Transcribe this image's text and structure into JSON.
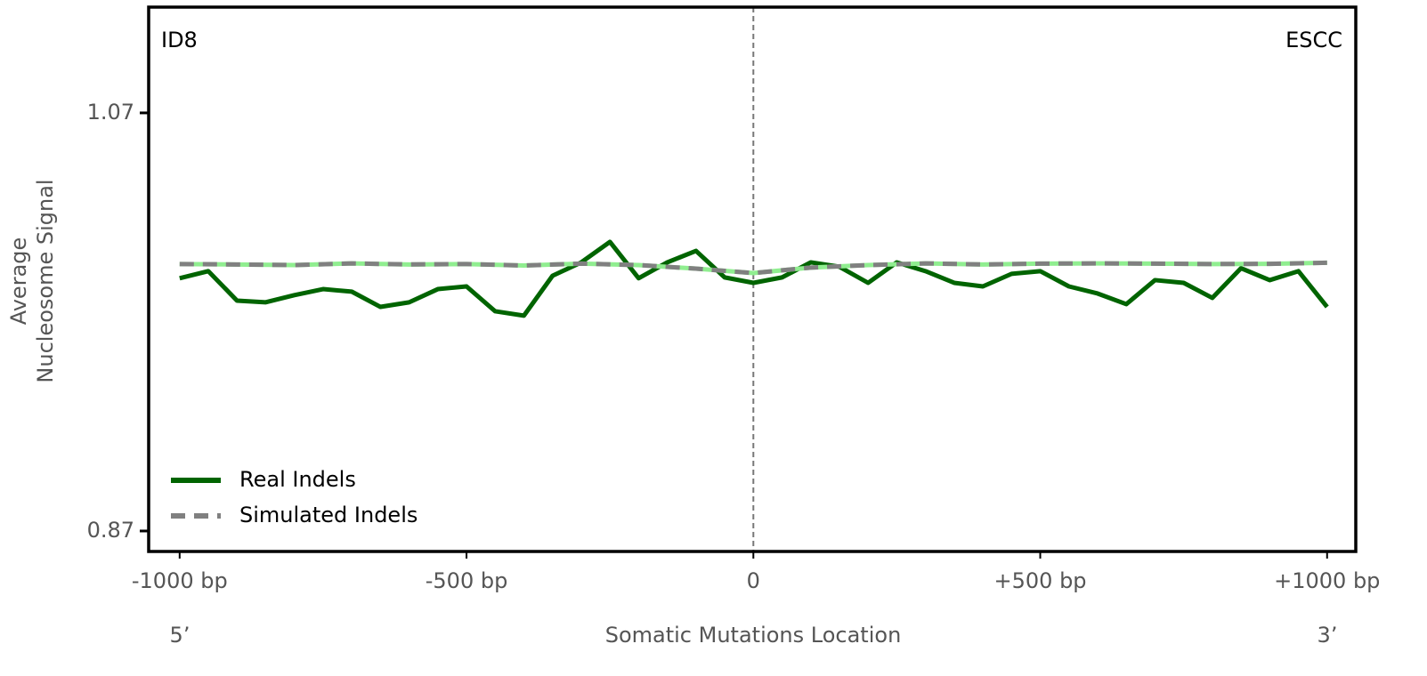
{
  "chart_data": {
    "type": "line",
    "title": "ID8",
    "subtitle": "ESCC",
    "ylabel": [
      "Average",
      "Nucleosome Signal"
    ],
    "xlabel": "Somatic Mutations Location",
    "annotations": [
      "5’",
      "3’"
    ],
    "xlim": [
      -1054,
      1050
    ],
    "ylim": [
      0.8602,
      1.1206
    ],
    "xticks": [
      {
        "value": -1000,
        "label": "-1000 bp"
      },
      {
        "value": -500,
        "label": "-500 bp"
      },
      0,
      {
        "value": 500,
        "label": "+500 bp"
      },
      {
        "value": 1000,
        "label": "+1000 bp"
      }
    ],
    "yticks": [
      0.87,
      1.07
    ],
    "vline": 0,
    "legend": "lower left",
    "series": [
      {
        "name": "Real Indels",
        "color": "#006400",
        "style": "solid",
        "x": [
          -1000,
          -950,
          -900,
          -850,
          -800,
          -750,
          -700,
          -650,
          -600,
          -550,
          -500,
          -450,
          -400,
          -350,
          -300,
          -250,
          -200,
          -150,
          -100,
          -50,
          0,
          50,
          100,
          150,
          200,
          250,
          300,
          350,
          400,
          450,
          500,
          550,
          600,
          650,
          700,
          750,
          800,
          850,
          900,
          950,
          1000
        ],
        "values": [
          0.9909,
          0.9943,
          0.9802,
          0.9794,
          0.9828,
          0.9857,
          0.9845,
          0.9772,
          0.9794,
          0.9857,
          0.987,
          0.9751,
          0.973,
          0.9921,
          0.9985,
          1.0083,
          0.9909,
          0.9985,
          1.004,
          0.9913,
          0.9887,
          0.9913,
          0.9985,
          0.9964,
          0.9887,
          0.9985,
          0.9943,
          0.9887,
          0.987,
          0.993,
          0.9943,
          0.987,
          0.9836,
          0.9785,
          0.99,
          0.9887,
          0.9815,
          0.9957,
          0.99,
          0.9943,
          0.9772
        ]
      },
      {
        "name": "Simulated Indels",
        "color": "#808080",
        "style": "dashed",
        "dash_gap_color": "#90ee90",
        "x": [
          -1000,
          -900,
          -800,
          -700,
          -600,
          -500,
          -400,
          -300,
          -200,
          -100,
          0,
          100,
          200,
          300,
          400,
          500,
          600,
          700,
          800,
          900,
          1000
        ],
        "values": [
          0.9977,
          0.9975,
          0.9972,
          0.998,
          0.9975,
          0.9977,
          0.997,
          0.9979,
          0.9972,
          0.9955,
          0.9934,
          0.996,
          0.9972,
          0.998,
          0.9975,
          0.9979,
          0.998,
          0.9979,
          0.9977,
          0.9978,
          0.9983
        ]
      }
    ]
  }
}
